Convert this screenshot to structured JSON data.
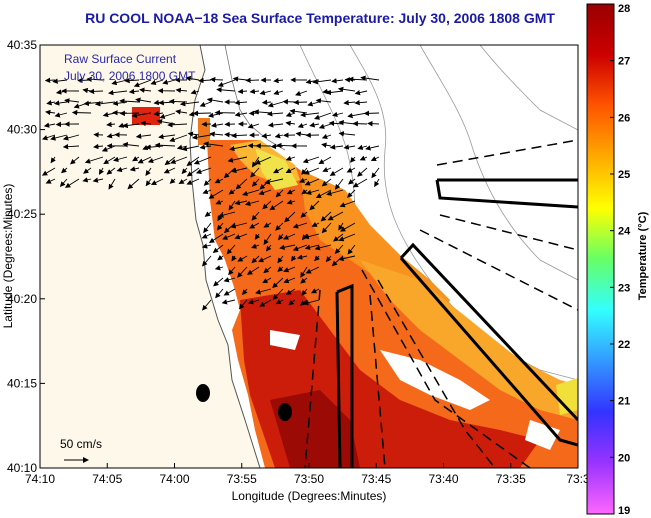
{
  "chart_data": {
    "type": "heatmap",
    "title": "RU COOL  NOAA−18  Sea Surface Temperature:  July 30, 2006 1808 GMT",
    "legend_lines": [
      "Raw Surface Current",
      "July 30, 2006 1800 GMT"
    ],
    "xlabel": "Longitude (Degrees:Minutes)",
    "ylabel": "Latitude (Degrees:Minutes)",
    "x_ticks": [
      "74:10",
      "74:05",
      "74:00",
      "73:55",
      "73:50",
      "73:45",
      "73:40",
      "73:35",
      "73:3"
    ],
    "y_ticks": [
      "40:35",
      "40:30",
      "40:25",
      "40:20",
      "40:15",
      "40:10"
    ],
    "xlim_deg": [
      -74.1667,
      -73.5
    ],
    "ylim_deg": [
      40.1667,
      40.5833
    ],
    "colorbar": {
      "label": "Temperature (°C)",
      "ticks": [
        19,
        20,
        21,
        22,
        23,
        24,
        25,
        26,
        27,
        28
      ],
      "range": [
        19,
        28
      ],
      "colors": [
        "#ff66ff",
        "#9933ff",
        "#3333ff",
        "#3399ff",
        "#33ffff",
        "#66ff66",
        "#ffff00",
        "#ffaa00",
        "#ff5500",
        "#cc0000",
        "#990000"
      ]
    },
    "scale_vector_label": "50 cm/s",
    "approx_sst_range_c": [
      24.5,
      28
    ],
    "grid": false
  }
}
